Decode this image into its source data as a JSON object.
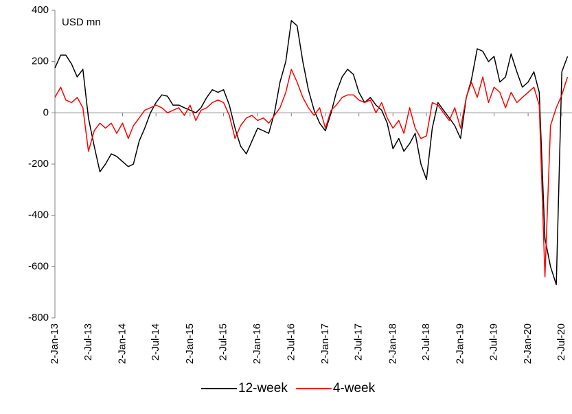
{
  "chart_data": {
    "type": "line",
    "annotation": "USD mn",
    "x": [
      "2013-01-02",
      "2013-02-02",
      "2013-03-02",
      "2013-04-02",
      "2013-05-02",
      "2013-06-02",
      "2013-07-02",
      "2013-08-02",
      "2013-09-02",
      "2013-10-02",
      "2013-11-02",
      "2013-12-02",
      "2014-01-02",
      "2014-02-02",
      "2014-03-02",
      "2014-04-02",
      "2014-05-02",
      "2014-06-02",
      "2014-07-02",
      "2014-08-02",
      "2014-09-02",
      "2014-10-02",
      "2014-11-02",
      "2014-12-02",
      "2015-01-02",
      "2015-02-02",
      "2015-03-02",
      "2015-04-02",
      "2015-05-02",
      "2015-06-02",
      "2015-07-02",
      "2015-08-02",
      "2015-09-02",
      "2015-10-02",
      "2015-11-02",
      "2015-12-02",
      "2016-01-02",
      "2016-02-02",
      "2016-03-02",
      "2016-04-02",
      "2016-05-02",
      "2016-06-02",
      "2016-07-02",
      "2016-08-02",
      "2016-09-02",
      "2016-10-02",
      "2016-11-02",
      "2016-12-02",
      "2017-01-02",
      "2017-02-02",
      "2017-03-02",
      "2017-04-02",
      "2017-05-02",
      "2017-06-02",
      "2017-07-02",
      "2017-08-02",
      "2017-09-02",
      "2017-10-02",
      "2017-11-02",
      "2017-12-02",
      "2018-01-02",
      "2018-02-02",
      "2018-03-02",
      "2018-04-02",
      "2018-05-02",
      "2018-06-02",
      "2018-07-02",
      "2018-08-02",
      "2018-09-02",
      "2018-10-02",
      "2018-11-02",
      "2018-12-02",
      "2019-01-02",
      "2019-02-02",
      "2019-03-02",
      "2019-04-02",
      "2019-05-02",
      "2019-06-02",
      "2019-07-02",
      "2019-08-02",
      "2019-09-02",
      "2019-10-02",
      "2019-11-02",
      "2019-12-02",
      "2020-01-02",
      "2020-02-02",
      "2020-03-02",
      "2020-04-02",
      "2020-05-02",
      "2020-06-02",
      "2020-07-02",
      "2020-08-02"
    ],
    "series": [
      {
        "name": "12-week",
        "color": "#000000",
        "values": [
          175,
          225,
          225,
          190,
          140,
          170,
          -20,
          -130,
          -230,
          -200,
          -160,
          -170,
          -190,
          -210,
          -200,
          -110,
          -60,
          0,
          40,
          70,
          65,
          30,
          30,
          20,
          10,
          0,
          20,
          60,
          90,
          80,
          90,
          30,
          -60,
          -130,
          -160,
          -110,
          -60,
          -70,
          -80,
          0,
          120,
          200,
          360,
          340,
          200,
          90,
          10,
          -40,
          -70,
          0,
          80,
          140,
          170,
          150,
          80,
          40,
          60,
          30,
          10,
          -40,
          -140,
          -100,
          -150,
          -120,
          -80,
          -200,
          -260,
          -60,
          40,
          10,
          -20,
          -50,
          -100,
          60,
          130,
          250,
          240,
          200,
          220,
          120,
          140,
          230,
          160,
          100,
          120,
          160,
          80,
          -490,
          -600,
          -670,
          160,
          220
        ]
      },
      {
        "name": "4-week",
        "color": "#ff0000",
        "values": [
          60,
          100,
          50,
          40,
          60,
          20,
          -150,
          -70,
          -40,
          -60,
          -40,
          -80,
          -40,
          -100,
          -50,
          -20,
          10,
          20,
          30,
          20,
          0,
          10,
          20,
          -10,
          30,
          -30,
          10,
          20,
          40,
          50,
          40,
          -10,
          -100,
          -50,
          -20,
          -10,
          -30,
          -20,
          -40,
          -10,
          20,
          80,
          170,
          120,
          60,
          20,
          -10,
          20,
          -60,
          10,
          30,
          60,
          70,
          70,
          50,
          40,
          50,
          0,
          40,
          -20,
          -60,
          -30,
          -80,
          20,
          -60,
          -100,
          -90,
          40,
          30,
          0,
          -30,
          20,
          -60,
          60,
          120,
          60,
          140,
          40,
          100,
          80,
          20,
          80,
          40,
          60,
          80,
          100,
          30,
          -640,
          -50,
          20,
          70,
          140
        ]
      }
    ],
    "xlim": [
      "2013-01-02",
      "2020-08-26"
    ],
    "xticks": [
      {
        "value": "2013-01-02",
        "label": "2-Jan-13"
      },
      {
        "value": "2013-07-02",
        "label": "2-Jul-13"
      },
      {
        "value": "2014-01-02",
        "label": "2-Jan-14"
      },
      {
        "value": "2014-07-02",
        "label": "2-Jul-14"
      },
      {
        "value": "2015-01-02",
        "label": "2-Jan-15"
      },
      {
        "value": "2015-07-02",
        "label": "2-Jul-15"
      },
      {
        "value": "2016-01-02",
        "label": "2-Jan-16"
      },
      {
        "value": "2016-07-02",
        "label": "2-Jul-16"
      },
      {
        "value": "2017-01-02",
        "label": "2-Jan-17"
      },
      {
        "value": "2017-07-02",
        "label": "2-Jul-17"
      },
      {
        "value": "2018-01-02",
        "label": "2-Jan-18"
      },
      {
        "value": "2018-07-02",
        "label": "2-Jul-18"
      },
      {
        "value": "2019-01-02",
        "label": "2-Jan-19"
      },
      {
        "value": "2019-07-02",
        "label": "2-Jul-19"
      },
      {
        "value": "2020-01-02",
        "label": "2-Jan-20"
      },
      {
        "value": "2020-07-02",
        "label": "2-Jul-20"
      }
    ],
    "ylim": [
      -800,
      400
    ],
    "yticks": [
      -800,
      -600,
      -400,
      -200,
      0,
      200,
      400
    ],
    "legend": "bottom"
  }
}
